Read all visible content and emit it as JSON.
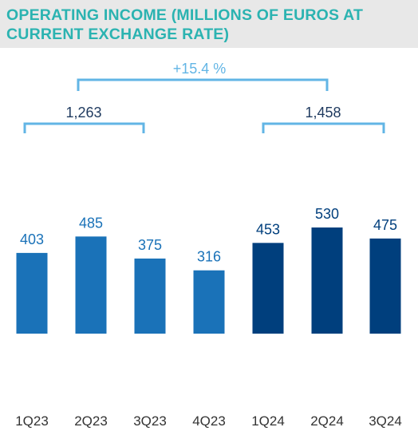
{
  "title": "OPERATING INCOME (MILLIONS OF EUROS AT CURRENT EXCHANGE RATE)",
  "colors": {
    "bar_2023": "#1a72b8",
    "bar_2024": "#003f7d",
    "bracket": "#62b5e5",
    "label_2023": "#1a72b8",
    "label_2024": "#003f7d",
    "header_bg": "#e8e8e8",
    "title": "#2bb3b1"
  },
  "brackets": {
    "growth_label": "+15.4 %",
    "total_2023_label": "1,263",
    "total_2024_label": "1,458"
  },
  "chart_data": {
    "type": "bar",
    "title": "OPERATING INCOME (MILLIONS OF EUROS AT CURRENT EXCHANGE RATE)",
    "xlabel": "",
    "ylabel": "",
    "categories": [
      "1Q23",
      "2Q23",
      "3Q23",
      "4Q23",
      "1Q24",
      "2Q24",
      "3Q24"
    ],
    "values": [
      403,
      485,
      375,
      316,
      453,
      530,
      475
    ],
    "value_labels": [
      "403",
      "485",
      "375",
      "316",
      "453",
      "530",
      "475"
    ],
    "ylim": [
      0,
      600
    ],
    "grid": false,
    "legend": "none"
  }
}
